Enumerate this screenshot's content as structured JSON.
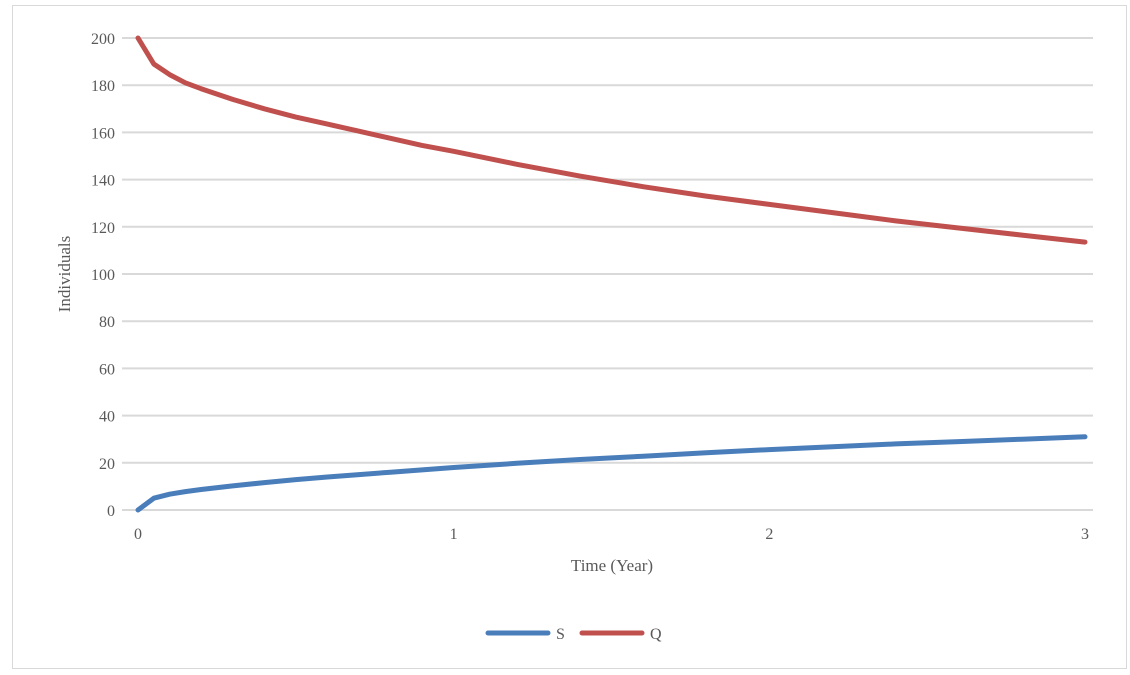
{
  "chart_data": {
    "type": "line",
    "xlabel": "Time (Year)",
    "ylabel": "Individuals",
    "xlim": [
      0,
      3
    ],
    "ylim": [
      0,
      200
    ],
    "x_ticks": [
      0,
      1,
      2,
      3
    ],
    "y_ticks": [
      0,
      20,
      40,
      60,
      80,
      100,
      120,
      140,
      160,
      180,
      200
    ],
    "grid": "horizontal",
    "legend_position": "bottom",
    "series": [
      {
        "name": "S",
        "color": "#4a7ebb",
        "x": [
          0,
          0.05,
          0.1,
          0.15,
          0.2,
          0.3,
          0.4,
          0.5,
          0.6,
          0.7,
          0.8,
          0.9,
          1.0,
          1.2,
          1.4,
          1.6,
          1.8,
          2.0,
          2.2,
          2.4,
          2.6,
          2.8,
          3.0
        ],
        "values": [
          0,
          5,
          6.7,
          7.8,
          8.7,
          10.2,
          11.6,
          12.9,
          14.0,
          15.0,
          16.0,
          17.0,
          18.0,
          19.8,
          21.4,
          22.8,
          24.3,
          25.6,
          26.8,
          28.0,
          29.0,
          30.0,
          31.0
        ]
      },
      {
        "name": "Q",
        "color": "#c0504d",
        "x": [
          0,
          0.05,
          0.1,
          0.15,
          0.2,
          0.3,
          0.4,
          0.5,
          0.6,
          0.7,
          0.8,
          0.9,
          1.0,
          1.2,
          1.4,
          1.6,
          1.8,
          2.0,
          2.2,
          2.4,
          2.6,
          2.8,
          3.0
        ],
        "values": [
          200,
          189,
          184.5,
          181,
          178.5,
          174,
          170,
          166.5,
          163.5,
          160.5,
          157.5,
          154.5,
          152,
          146.5,
          141.5,
          137,
          133,
          129.5,
          126,
          122.5,
          119.5,
          116.5,
          113.5
        ]
      }
    ]
  }
}
